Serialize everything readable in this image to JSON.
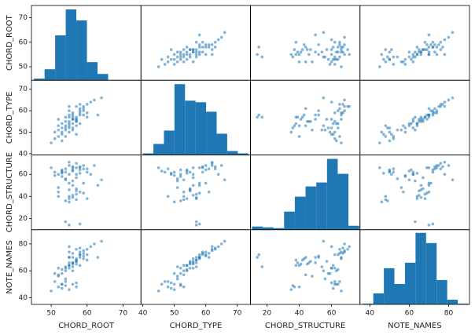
{
  "chart_data": {
    "type": "scatter_matrix",
    "color": "#1f77b4",
    "variables": [
      {
        "name": "CHORD_ROOT",
        "lim": [
          44.5,
          75
        ],
        "ticks": [
          50,
          60,
          70
        ],
        "values": [
          55,
          57,
          53,
          56,
          58,
          52,
          54,
          59,
          56,
          55,
          51,
          57,
          60,
          53,
          58,
          55,
          56,
          54,
          61,
          52,
          57,
          55,
          58,
          54,
          56,
          59,
          53,
          57,
          55,
          60,
          56,
          54,
          58,
          52,
          57,
          55,
          62,
          53,
          56,
          59,
          51,
          57,
          55,
          58,
          54,
          60,
          56,
          53,
          59,
          55,
          57,
          64,
          50,
          56,
          58,
          55,
          52,
          63,
          54,
          57
        ],
        "hist": {
          "bins": [
            45.2,
            48.15,
            51.1,
            54.05,
            57,
            59.95,
            62.9,
            65.85
          ],
          "counts": [
            2,
            14,
            57,
            90,
            76,
            23,
            8
          ],
          "ylim": [
            0,
            95
          ]
        }
      },
      {
        "name": "CHORD_TYPE",
        "lim": [
          39.4,
          74.2
        ],
        "ticks": [
          40,
          50,
          60,
          70
        ],
        "values": [
          52,
          55,
          50,
          58,
          60,
          48,
          53,
          62,
          56,
          54,
          47,
          57,
          63,
          52,
          61,
          50,
          59,
          55,
          64,
          51,
          56,
          53,
          58,
          57,
          52,
          60,
          49,
          62,
          55,
          57,
          54,
          51,
          59,
          56,
          53,
          58,
          65,
          46,
          56,
          61,
          50,
          55,
          57,
          63,
          52,
          59,
          51,
          54,
          58,
          60,
          49,
          66,
          45,
          57,
          54,
          62,
          53,
          58,
          48,
          56
        ],
        "hist": {
          "bins": [
            40,
            43.35,
            46.7,
            50.05,
            53.4,
            56.75,
            60.1,
            63.45,
            66.8,
            70.15,
            73.5
          ],
          "counts": [
            2,
            14,
            31,
            90,
            69,
            67,
            55,
            27,
            5,
            2
          ],
          "ylim": [
            0,
            95
          ]
        }
      },
      {
        "name": "CHORD_STRUCTURE",
        "lim": [
          9.8,
          77.6
        ],
        "ticks": [
          20,
          40,
          60
        ],
        "values": [
          60,
          45,
          62,
          66,
          64,
          40,
          55,
          68,
          50,
          38,
          62,
          42,
          65,
          58,
          44,
          35,
          67,
          62,
          60,
          48,
          66,
          40,
          15,
          17,
          64,
          52,
          61,
          70,
          46,
          38,
          63,
          56,
          66,
          60,
          37,
          52,
          68,
          63,
          41,
          65,
          59,
          47,
          14,
          67,
          36,
          62,
          54,
          64,
          43,
          68,
          60,
          55,
          66,
          39,
          61,
          71,
          44,
          50,
          65,
          57
        ],
        "hist": {
          "bins": [
            10.7,
            17.34,
            23.98,
            30.62,
            37.26,
            43.9,
            50.54,
            57.18,
            63.82,
            70.46,
            77.1
          ],
          "counts": [
            4,
            3,
            2,
            23,
            42,
            55,
            60,
            90,
            71,
            5
          ],
          "ylim": [
            0,
            95
          ]
        }
      },
      {
        "name": "NOTE_NAMES",
        "lim": [
          35,
          90.6
        ],
        "ticks": [
          40,
          60,
          80
        ],
        "values": [
          62,
          65,
          50,
          70,
          72,
          48,
          60,
          75,
          66,
          64,
          52,
          68,
          76,
          58,
          70,
          46,
          73,
          62,
          78,
          56,
          69,
          64,
          72,
          63,
          50,
          71,
          47,
          76,
          66,
          68,
          60,
          54,
          74,
          62,
          48,
          70,
          80,
          50,
          65,
          73,
          58,
          67,
          70,
          77,
          49,
          72,
          63,
          61,
          69,
          74,
          51,
          82,
          45,
          66,
          64,
          78,
          57,
          70,
          52,
          67
        ],
        "hist": {
          "bins": [
            36.4,
            41.76,
            47.12,
            52.48,
            57.84,
            63.2,
            68.56,
            73.92,
            79.28,
            84.64,
            90
          ],
          "counts": [
            1,
            14,
            46,
            26,
            53,
            91,
            78,
            31,
            6,
            1
          ],
          "ylim": [
            0,
            95
          ]
        }
      }
    ]
  }
}
